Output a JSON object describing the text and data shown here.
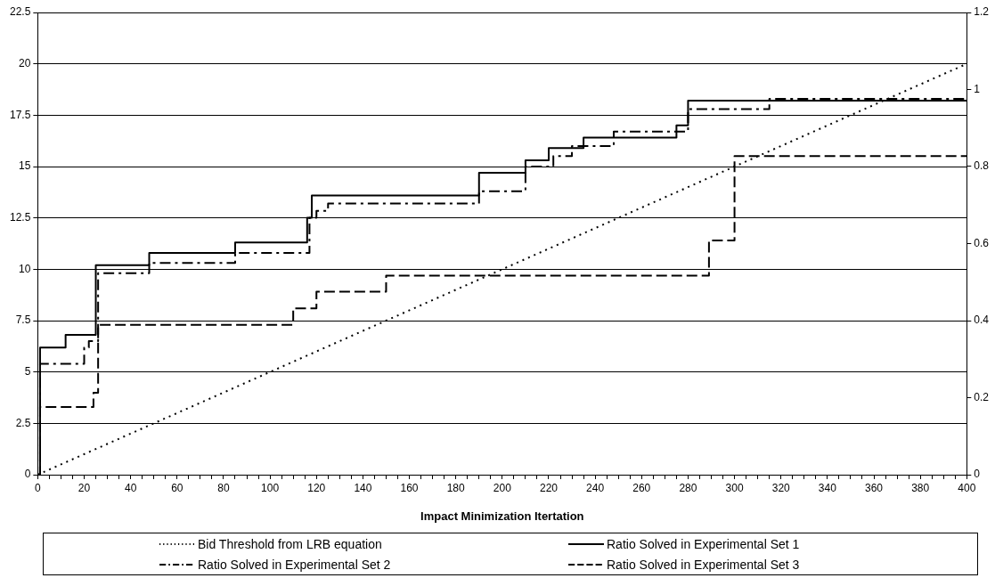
{
  "chart_data": {
    "type": "line",
    "xlabel": "Impact Minimization Itertation",
    "xlim": [
      0,
      400
    ],
    "xticks": [
      0,
      {
        "value": 5,
        "label": null
      },
      {
        "value": 10,
        "label": null
      },
      {
        "value": 15,
        "label": null
      },
      20,
      {
        "value": 25,
        "label": null
      },
      {
        "value": 30,
        "label": null
      },
      {
        "value": 35,
        "label": null
      },
      40,
      {
        "value": 45,
        "label": null
      },
      {
        "value": 50,
        "label": null
      },
      {
        "value": 55,
        "label": null
      },
      60,
      {
        "value": 65,
        "label": null
      },
      {
        "value": 70,
        "label": null
      },
      {
        "value": 75,
        "label": null
      },
      80,
      {
        "value": 85,
        "label": null
      },
      {
        "value": 90,
        "label": null
      },
      {
        "value": 95,
        "label": null
      },
      100,
      {
        "value": 105,
        "label": null
      },
      {
        "value": 110,
        "label": null
      },
      {
        "value": 115,
        "label": null
      },
      120,
      {
        "value": 125,
        "label": null
      },
      {
        "value": 130,
        "label": null
      },
      {
        "value": 135,
        "label": null
      },
      140,
      {
        "value": 145,
        "label": null
      },
      {
        "value": 150,
        "label": null
      },
      {
        "value": 155,
        "label": null
      },
      160,
      {
        "value": 165,
        "label": null
      },
      {
        "value": 170,
        "label": null
      },
      {
        "value": 175,
        "label": null
      },
      180,
      {
        "value": 185,
        "label": null
      },
      {
        "value": 190,
        "label": null
      },
      {
        "value": 195,
        "label": null
      },
      200,
      {
        "value": 205,
        "label": null
      },
      {
        "value": 210,
        "label": null
      },
      {
        "value": 215,
        "label": null
      },
      220,
      {
        "value": 225,
        "label": null
      },
      {
        "value": 230,
        "label": null
      },
      {
        "value": 235,
        "label": null
      },
      240,
      {
        "value": 245,
        "label": null
      },
      {
        "value": 250,
        "label": null
      },
      {
        "value": 255,
        "label": null
      },
      260,
      {
        "value": 265,
        "label": null
      },
      {
        "value": 270,
        "label": null
      },
      {
        "value": 275,
        "label": null
      },
      280,
      {
        "value": 285,
        "label": null
      },
      {
        "value": 290,
        "label": null
      },
      {
        "value": 295,
        "label": null
      },
      300,
      {
        "value": 305,
        "label": null
      },
      {
        "value": 310,
        "label": null
      },
      {
        "value": 315,
        "label": null
      },
      320,
      {
        "value": 325,
        "label": null
      },
      {
        "value": 330,
        "label": null
      },
      {
        "value": 335,
        "label": null
      },
      340,
      {
        "value": 345,
        "label": null
      },
      {
        "value": 350,
        "label": null
      },
      {
        "value": 355,
        "label": null
      },
      360,
      {
        "value": 365,
        "label": null
      },
      {
        "value": 370,
        "label": null
      },
      {
        "value": 375,
        "label": null
      },
      380,
      {
        "value": 385,
        "label": null
      },
      {
        "value": 390,
        "label": null
      },
      {
        "value": 395,
        "label": null
      },
      400
    ],
    "ylim": [
      0,
      22.5
    ],
    "yticks": [
      0,
      2.5,
      5,
      7.5,
      10,
      12.5,
      15,
      17.5,
      20,
      22.5
    ],
    "y2lim": [
      0,
      1.2
    ],
    "y2ticks": [
      0,
      0.2,
      0.4,
      0.6,
      0.8,
      1,
      1.2
    ],
    "grid": "y",
    "legend": "bottom",
    "marker": "none",
    "series": [
      {
        "name": "Bid Threshold from LRB equation",
        "type": "line",
        "line_style": "dotted",
        "color": "#000000",
        "x": [
          0,
          400
        ],
        "values": [
          0,
          20
        ]
      },
      {
        "name": "Ratio Solved in Experimental Set 1",
        "type": "step",
        "axis": "y2",
        "line_style": "solid",
        "color": "#000000",
        "x": [
          0,
          1,
          12,
          25,
          48,
          85,
          116,
          118,
          190,
          210,
          220,
          235,
          275,
          280,
          400
        ],
        "values": [
          0,
          0.33,
          0.363,
          0.544,
          0.576,
          0.603,
          0.667,
          0.725,
          0.784,
          0.816,
          0.848,
          0.875,
          0.907,
          0.971,
          0.971
        ]
      },
      {
        "name": "Ratio Solved in Experimental Set 2",
        "type": "step",
        "axis": "y2",
        "line_style": "dashdot",
        "color": "#000000",
        "x": [
          0,
          1,
          20,
          22,
          26,
          48,
          85,
          117,
          120,
          125,
          190,
          210,
          222,
          230,
          248,
          280,
          315,
          400
        ],
        "values": [
          0,
          0.288,
          0.33,
          0.347,
          0.523,
          0.55,
          0.576,
          0.667,
          0.685,
          0.704,
          0.736,
          0.8,
          0.827,
          0.853,
          0.891,
          0.949,
          0.976,
          0.976
        ]
      },
      {
        "name": "Ratio Solved in Experimental Set 3",
        "type": "step",
        "axis": "y2",
        "line_style": "dashed",
        "color": "#000000",
        "x": [
          0,
          1,
          24,
          26,
          110,
          120,
          150,
          289,
          300,
          400
        ],
        "values": [
          0,
          0.176,
          0.213,
          0.389,
          0.432,
          0.475,
          0.517,
          0.608,
          0.827,
          0.827
        ]
      }
    ]
  }
}
